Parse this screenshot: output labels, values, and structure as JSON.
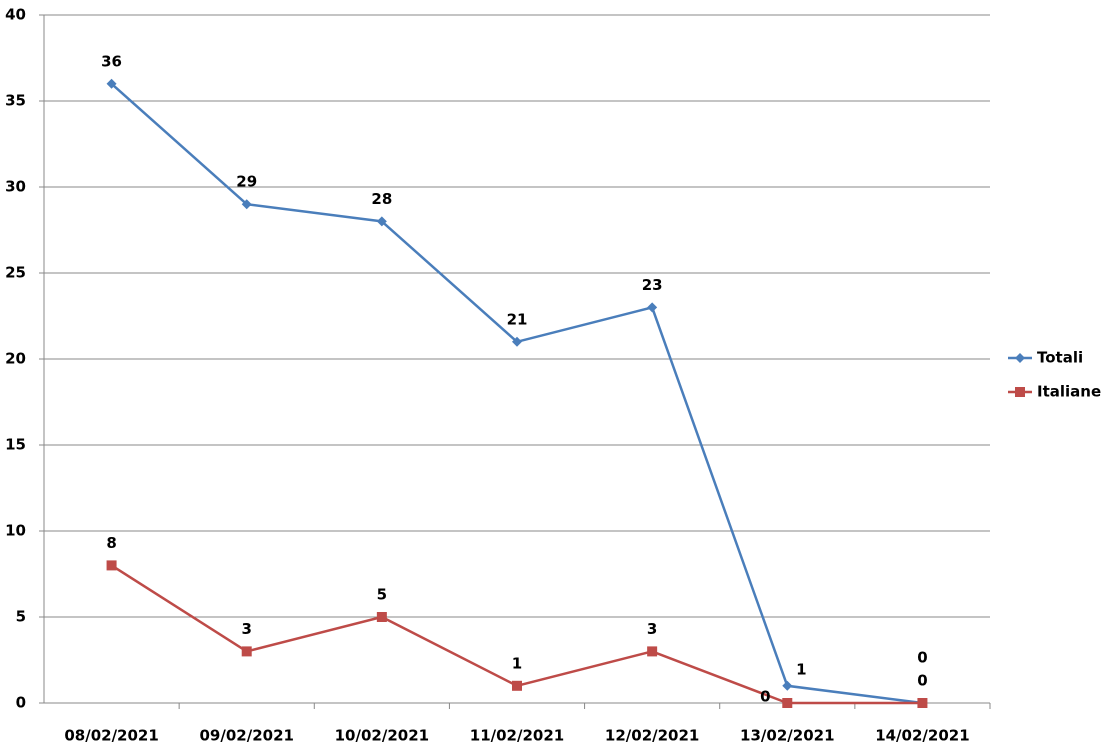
{
  "chart_data": {
    "type": "line",
    "categories": [
      "08/02/2021",
      "09/02/2021",
      "10/02/2021",
      "11/02/2021",
      "12/02/2021",
      "13/02/2021",
      "14/02/2021"
    ],
    "series": [
      {
        "name": "Totali",
        "color": "#4a7ebb",
        "marker": "diamond",
        "values": [
          36,
          29,
          28,
          21,
          23,
          1,
          0
        ]
      },
      {
        "name": "Italiane",
        "color": "#be4b48",
        "marker": "square",
        "values": [
          8,
          3,
          5,
          1,
          3,
          0,
          0
        ]
      }
    ],
    "ylim": [
      0,
      40
    ],
    "yticks": [
      0,
      5,
      10,
      15,
      20,
      25,
      30,
      35,
      40
    ],
    "grid": true,
    "legend": "right"
  }
}
